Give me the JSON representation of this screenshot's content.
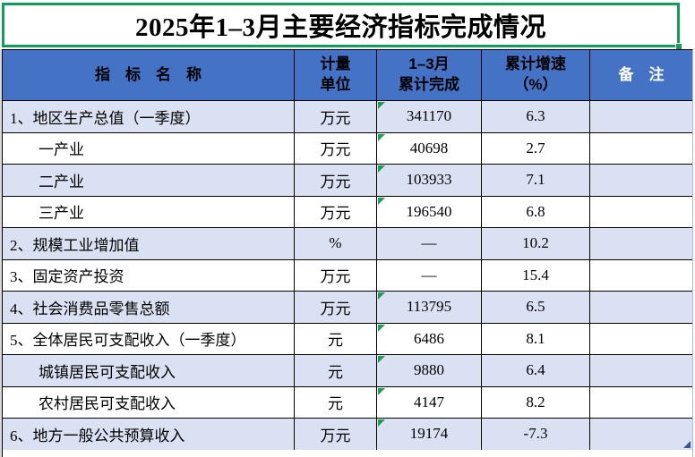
{
  "title": "2025年1–3月主要经济指标完成情况",
  "colors": {
    "header_blue": "#4472c4",
    "row_alt_blue": "#d9e1f2",
    "selection_green": "#119c5c",
    "error_indicator_green": "#1f9d55",
    "corner_marker_blue": "#30549e"
  },
  "table": {
    "headers": {
      "indicator": "指　标　名　称",
      "unit": "计量\n单位",
      "completed": "1–3月\n累计完成",
      "growth": "累计增速\n（%）",
      "remark": "备　注"
    },
    "rows": [
      {
        "name": "1、地区生产总值（一季度）",
        "unit": "万元",
        "value": "341170",
        "growth": "6.3",
        "indent": false,
        "error_mark": true
      },
      {
        "name": "一产业",
        "unit": "万元",
        "value": "40698",
        "growth": "2.7",
        "indent": true,
        "error_mark": true
      },
      {
        "name": "二产业",
        "unit": "万元",
        "value": "103933",
        "growth": "7.1",
        "indent": true,
        "error_mark": true
      },
      {
        "name": "三产业",
        "unit": "万元",
        "value": "196540",
        "growth": "6.8",
        "indent": true,
        "error_mark": true
      },
      {
        "name": "2、规模工业增加值",
        "unit": "%",
        "value": "—",
        "growth": "10.2",
        "indent": false,
        "error_mark": false
      },
      {
        "name": "3、固定资产投资",
        "unit": "万元",
        "value": "—",
        "growth": "15.4",
        "indent": false,
        "error_mark": false
      },
      {
        "name": "4、社会消费品零售总额",
        "unit": "万元",
        "value": "113795",
        "growth": "6.5",
        "indent": false,
        "error_mark": true
      },
      {
        "name": "5、全体居民可支配收入（一季度）",
        "unit": "元",
        "value": "6486",
        "growth": "8.1",
        "indent": false,
        "error_mark": true
      },
      {
        "name": "城镇居民可支配收入",
        "unit": "元",
        "value": "9880",
        "growth": "6.4",
        "indent": true,
        "error_mark": true
      },
      {
        "name": "农村居民可支配收入",
        "unit": "元",
        "value": "4147",
        "growth": "8.2",
        "indent": true,
        "error_mark": true
      },
      {
        "name": "6、地方一般公共预算收入",
        "unit": "万元",
        "value": "19174",
        "growth": "-7.3",
        "indent": false,
        "error_mark": true
      }
    ]
  }
}
